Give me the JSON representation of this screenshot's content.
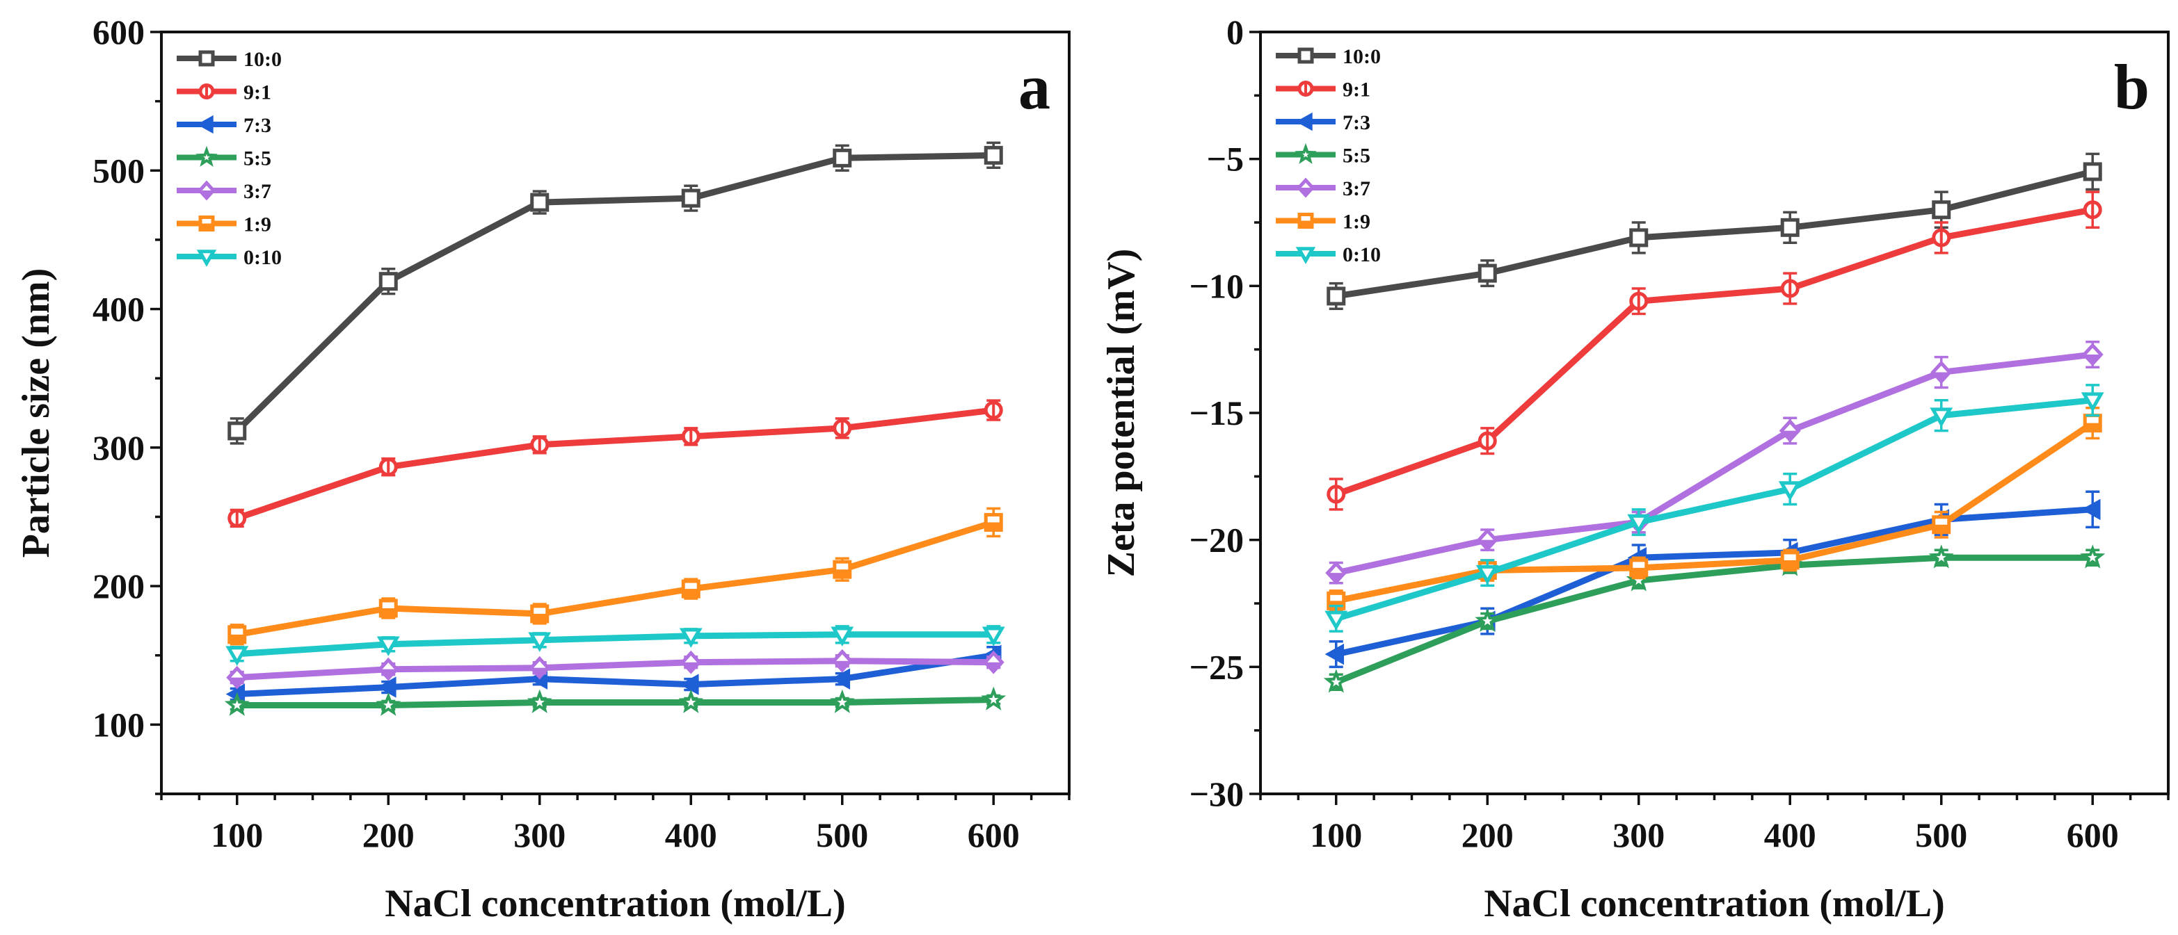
{
  "chart_data": [
    {
      "type": "line",
      "panel_label": "a",
      "xlabel": "NaCl concentration (mol/L)",
      "ylabel": "Particle size (nm)",
      "xlim": [
        50,
        650
      ],
      "ylim": [
        50,
        600
      ],
      "xticks": [
        100,
        200,
        300,
        400,
        500,
        600
      ],
      "yticks": [
        100,
        200,
        300,
        400,
        500,
        600
      ],
      "x": [
        100,
        200,
        300,
        400,
        500,
        600
      ],
      "legend_position": "top-left",
      "series": [
        {
          "name": "10:0",
          "color": "#4a4a4a",
          "marker": "square",
          "values": [
            312,
            420,
            477,
            480,
            509,
            511
          ],
          "errors": [
            9,
            9,
            8,
            9,
            9,
            9
          ]
        },
        {
          "name": "9:1",
          "color": "#ee3b3b",
          "marker": "circle",
          "values": [
            249,
            286,
            302,
            308,
            314,
            327
          ],
          "errors": [
            6,
            6,
            6,
            6,
            7,
            7
          ]
        },
        {
          "name": "7:3",
          "color": "#1f5fd6",
          "marker": "triangle-left",
          "values": [
            122,
            127,
            133,
            129,
            133,
            150
          ],
          "errors": [
            4,
            4,
            4,
            4,
            4,
            6
          ]
        },
        {
          "name": "5:5",
          "color": "#2e9e5b",
          "marker": "star",
          "values": [
            114,
            114,
            116,
            116,
            116,
            118
          ],
          "errors": [
            3,
            3,
            3,
            3,
            3,
            3
          ]
        },
        {
          "name": "3:7",
          "color": "#b070e0",
          "marker": "diamond",
          "values": [
            134,
            140,
            141,
            145,
            146,
            145
          ],
          "errors": [
            4,
            4,
            4,
            4,
            4,
            4
          ]
        },
        {
          "name": "1:9",
          "color": "#ff8c1a",
          "marker": "half-square",
          "values": [
            165,
            184,
            180,
            198,
            212,
            246
          ],
          "errors": [
            7,
            7,
            7,
            7,
            8,
            10
          ]
        },
        {
          "name": "0:10",
          "color": "#1ec8c8",
          "marker": "triangle-down",
          "values": [
            151,
            158,
            161,
            164,
            165,
            165
          ],
          "errors": [
            5,
            5,
            5,
            5,
            6,
            6
          ]
        }
      ]
    },
    {
      "type": "line",
      "panel_label": "b",
      "xlabel": "NaCl concentration (mol/L)",
      "ylabel": "Zeta potential (mV)",
      "xlim": [
        50,
        650
      ],
      "ylim": [
        -30,
        0
      ],
      "xticks": [
        100,
        200,
        300,
        400,
        500,
        600
      ],
      "yticks": [
        0,
        -5,
        -10,
        -15,
        -20,
        -25,
        -30
      ],
      "x": [
        100,
        200,
        300,
        400,
        500,
        600
      ],
      "legend_position": "top-left",
      "series": [
        {
          "name": "10:0",
          "color": "#4a4a4a",
          "marker": "square",
          "values": [
            -10.4,
            -9.5,
            -8.1,
            -7.7,
            -7.0,
            -5.5
          ],
          "errors": [
            0.5,
            0.5,
            0.6,
            0.6,
            0.7,
            0.7
          ]
        },
        {
          "name": "9:1",
          "color": "#ee3b3b",
          "marker": "circle",
          "values": [
            -18.2,
            -16.1,
            -10.6,
            -10.1,
            -8.1,
            -7.0
          ],
          "errors": [
            0.6,
            0.5,
            0.5,
            0.6,
            0.6,
            0.7
          ]
        },
        {
          "name": "7:3",
          "color": "#1f5fd6",
          "marker": "triangle-left",
          "values": [
            -24.5,
            -23.2,
            -20.7,
            -20.5,
            -19.2,
            -18.8
          ],
          "errors": [
            0.5,
            0.5,
            0.5,
            0.5,
            0.6,
            0.7
          ]
        },
        {
          "name": "5:5",
          "color": "#2e9e5b",
          "marker": "star",
          "values": [
            -25.6,
            -23.2,
            -21.6,
            -21.0,
            -20.7,
            -20.7
          ],
          "errors": [
            0.3,
            0.3,
            0.3,
            0.3,
            0.3,
            0.3
          ]
        },
        {
          "name": "3:7",
          "color": "#b070e0",
          "marker": "diamond",
          "values": [
            -21.3,
            -20.0,
            -19.3,
            -15.7,
            -13.4,
            -12.7
          ],
          "errors": [
            0.4,
            0.4,
            0.4,
            0.5,
            0.6,
            0.5
          ]
        },
        {
          "name": "1:9",
          "color": "#ff8c1a",
          "marker": "half-square",
          "values": [
            -22.4,
            -21.2,
            -21.1,
            -20.8,
            -19.4,
            -15.4
          ],
          "errors": [
            0.4,
            0.4,
            0.4,
            0.4,
            0.5,
            0.6
          ]
        },
        {
          "name": "0:10",
          "color": "#1ec8c8",
          "marker": "triangle-down",
          "values": [
            -23.1,
            -21.3,
            -19.3,
            -18.0,
            -15.1,
            -14.5
          ],
          "errors": [
            0.5,
            0.5,
            0.5,
            0.6,
            0.6,
            0.6
          ]
        }
      ]
    }
  ]
}
